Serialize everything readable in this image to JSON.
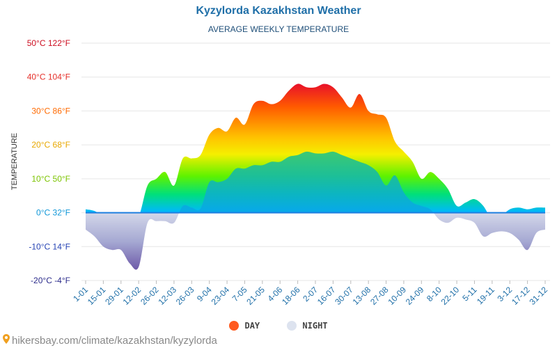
{
  "title": "Kyzylorda Kazakhstan Weather",
  "subtitle": "AVERAGE WEEKLY TEMPERATURE",
  "ylabel": "TEMPERATURE",
  "legend": [
    {
      "label": "DAY",
      "color": "#ff5a1f"
    },
    {
      "label": "NIGHT",
      "color": "#dde3ef"
    }
  ],
  "footer": "hikersbay.com/climate/kazakhstan/kyzylorda",
  "chart_data": {
    "type": "area",
    "x": [
      "1-01",
      "8-01",
      "15-01",
      "22-01",
      "29-01",
      "5-02",
      "12-02",
      "19-02",
      "26-02",
      "5-03",
      "12-03",
      "19-03",
      "26-03",
      "2-04",
      "9-04",
      "16-04",
      "23-04",
      "30-04",
      "7-05",
      "14-05",
      "21-05",
      "28-05",
      "4-06",
      "11-06",
      "18-06",
      "25-06",
      "2-07",
      "9-07",
      "16-07",
      "23-07",
      "30-07",
      "6-08",
      "13-08",
      "20-08",
      "27-08",
      "3-09",
      "10-09",
      "17-09",
      "24-09",
      "1-10",
      "8-10",
      "15-10",
      "22-10",
      "29-10",
      "5-11",
      "12-11",
      "19-11",
      "26-11",
      "3-12",
      "10-12",
      "17-12",
      "24-12",
      "31-12"
    ],
    "tick_labels": [
      "1-01",
      "15-01",
      "29-01",
      "12-02",
      "26-02",
      "12-03",
      "26-03",
      "9-04",
      "23-04",
      "7-05",
      "21-05",
      "4-06",
      "18-06",
      "2-07",
      "16-07",
      "30-07",
      "13-08",
      "27-08",
      "10-09",
      "24-09",
      "8-10",
      "22-10",
      "5-11",
      "19-11",
      "3-12",
      "17-12",
      "31-12"
    ],
    "series": [
      {
        "name": "DAY",
        "values": [
          1,
          0.5,
          -1,
          -2,
          -0.5,
          -1.5,
          -1.2,
          8,
          10,
          12,
          8,
          16,
          16,
          17,
          23,
          25,
          24,
          28,
          26,
          32,
          33,
          32,
          33,
          36,
          38,
          37,
          37,
          38,
          37,
          34,
          31,
          35,
          30,
          29,
          28,
          21,
          18,
          15,
          10,
          12,
          10,
          7,
          2,
          3,
          4,
          2,
          -2,
          -1,
          1,
          1.5,
          1,
          1.5,
          1.5
        ]
      },
      {
        "name": "NIGHT",
        "values": [
          -5,
          -7,
          -10,
          -11,
          -11,
          -15,
          -16,
          -3,
          -2.5,
          -2.5,
          -3,
          2,
          1.5,
          1.2,
          9,
          9,
          10,
          13,
          13,
          14,
          14,
          15,
          15,
          16.5,
          17,
          18,
          17.5,
          17.5,
          18,
          17,
          16,
          15,
          14,
          12,
          8,
          11,
          6,
          3,
          2,
          1,
          -2,
          -3,
          -1.5,
          -2,
          -3,
          -7,
          -6,
          -5.5,
          -6,
          -8,
          -11,
          -6,
          -5
        ]
      }
    ],
    "yticks": [
      {
        "c": 50,
        "label": "50°C 122°F",
        "color": "#cc0c1f"
      },
      {
        "c": 40,
        "label": "40°C 104°F",
        "color": "#e5302a"
      },
      {
        "c": 30,
        "label": "30°C 86°F",
        "color": "#ff6a00"
      },
      {
        "c": 20,
        "label": "20°C 68°F",
        "color": "#e8a800"
      },
      {
        "c": 10,
        "label": "10°C 50°F",
        "color": "#7cc400"
      },
      {
        "c": 0,
        "label": "0°C 32°F",
        "color": "#1097d8"
      },
      {
        "c": -10,
        "label": "-10°C 14°F",
        "color": "#2643b4"
      },
      {
        "c": -20,
        "label": "-20°C -4°F",
        "color": "#2a2a8a"
      }
    ],
    "ylim": [
      -20,
      50
    ],
    "grid": true
  }
}
